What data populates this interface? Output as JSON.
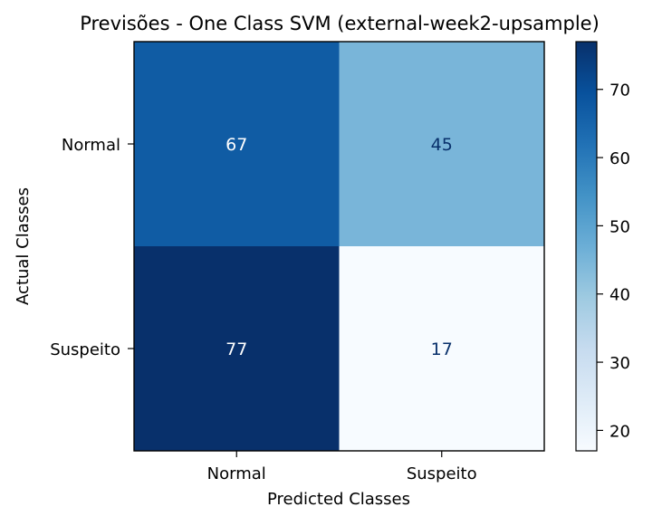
{
  "chart_data": {
    "type": "heatmap",
    "title": "Previsões - One Class SVM (external-week2-upsample)",
    "xlabel": "Predicted Classes",
    "ylabel": "Actual Classes",
    "x_categories": [
      "Normal",
      "Suspeito"
    ],
    "y_categories": [
      "Normal",
      "Suspeito"
    ],
    "values": [
      [
        67,
        45
      ],
      [
        77,
        17
      ]
    ],
    "colormap": "Blues",
    "color_range": [
      17,
      77
    ],
    "colorbar_ticks": [
      20,
      30,
      40,
      50,
      60,
      70
    ],
    "grid": false
  }
}
